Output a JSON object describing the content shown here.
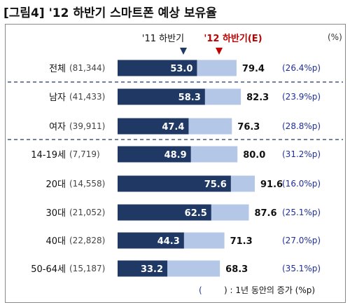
{
  "title": "[그림4] '12 하반기 스마트폰 예상 보유율",
  "unit": "(%)",
  "footnote_open": "(",
  "footnote_text": ") : 1년 동안의 증가 (%p)",
  "colors": {
    "prev": "#1f3864",
    "now": "#b4c7e7",
    "increase": "#1f2f9a",
    "marker_prev": "#1f3864",
    "marker_now": "#c00000",
    "legend_now": "#c00000"
  },
  "chart_data": {
    "type": "bar",
    "x_max_estimate": 100,
    "series": [
      {
        "name": "'11 하반기",
        "values": [
          53.0,
          58.3,
          47.4,
          48.9,
          75.6,
          62.5,
          44.3,
          33.2
        ]
      },
      {
        "name": "'12 하반기(E)",
        "values": [
          79.4,
          82.3,
          76.3,
          80.0,
          91.6,
          87.6,
          71.3,
          68.3
        ]
      }
    ],
    "categories": [
      {
        "label": "전체",
        "n": "(81,344)",
        "increase": "(26.4%p)"
      },
      {
        "label": "남자",
        "n": "(41,433)",
        "increase": "(23.9%p)"
      },
      {
        "label": "여자",
        "n": "(39,911)",
        "increase": "(28.8%p)"
      },
      {
        "label": "14-19세",
        "n": "(7,719)",
        "increase": "(31.2%p)"
      },
      {
        "label": "20대",
        "n": "(14,558)",
        "increase": "(16.0%p)"
      },
      {
        "label": "30대",
        "n": "(21,052)",
        "increase": "(25.1%p)"
      },
      {
        "label": "40대",
        "n": "(22,828)",
        "increase": "(27.0%p)"
      },
      {
        "label": "50-64세",
        "n": "(15,187)",
        "increase": "(35.1%p)"
      }
    ]
  }
}
